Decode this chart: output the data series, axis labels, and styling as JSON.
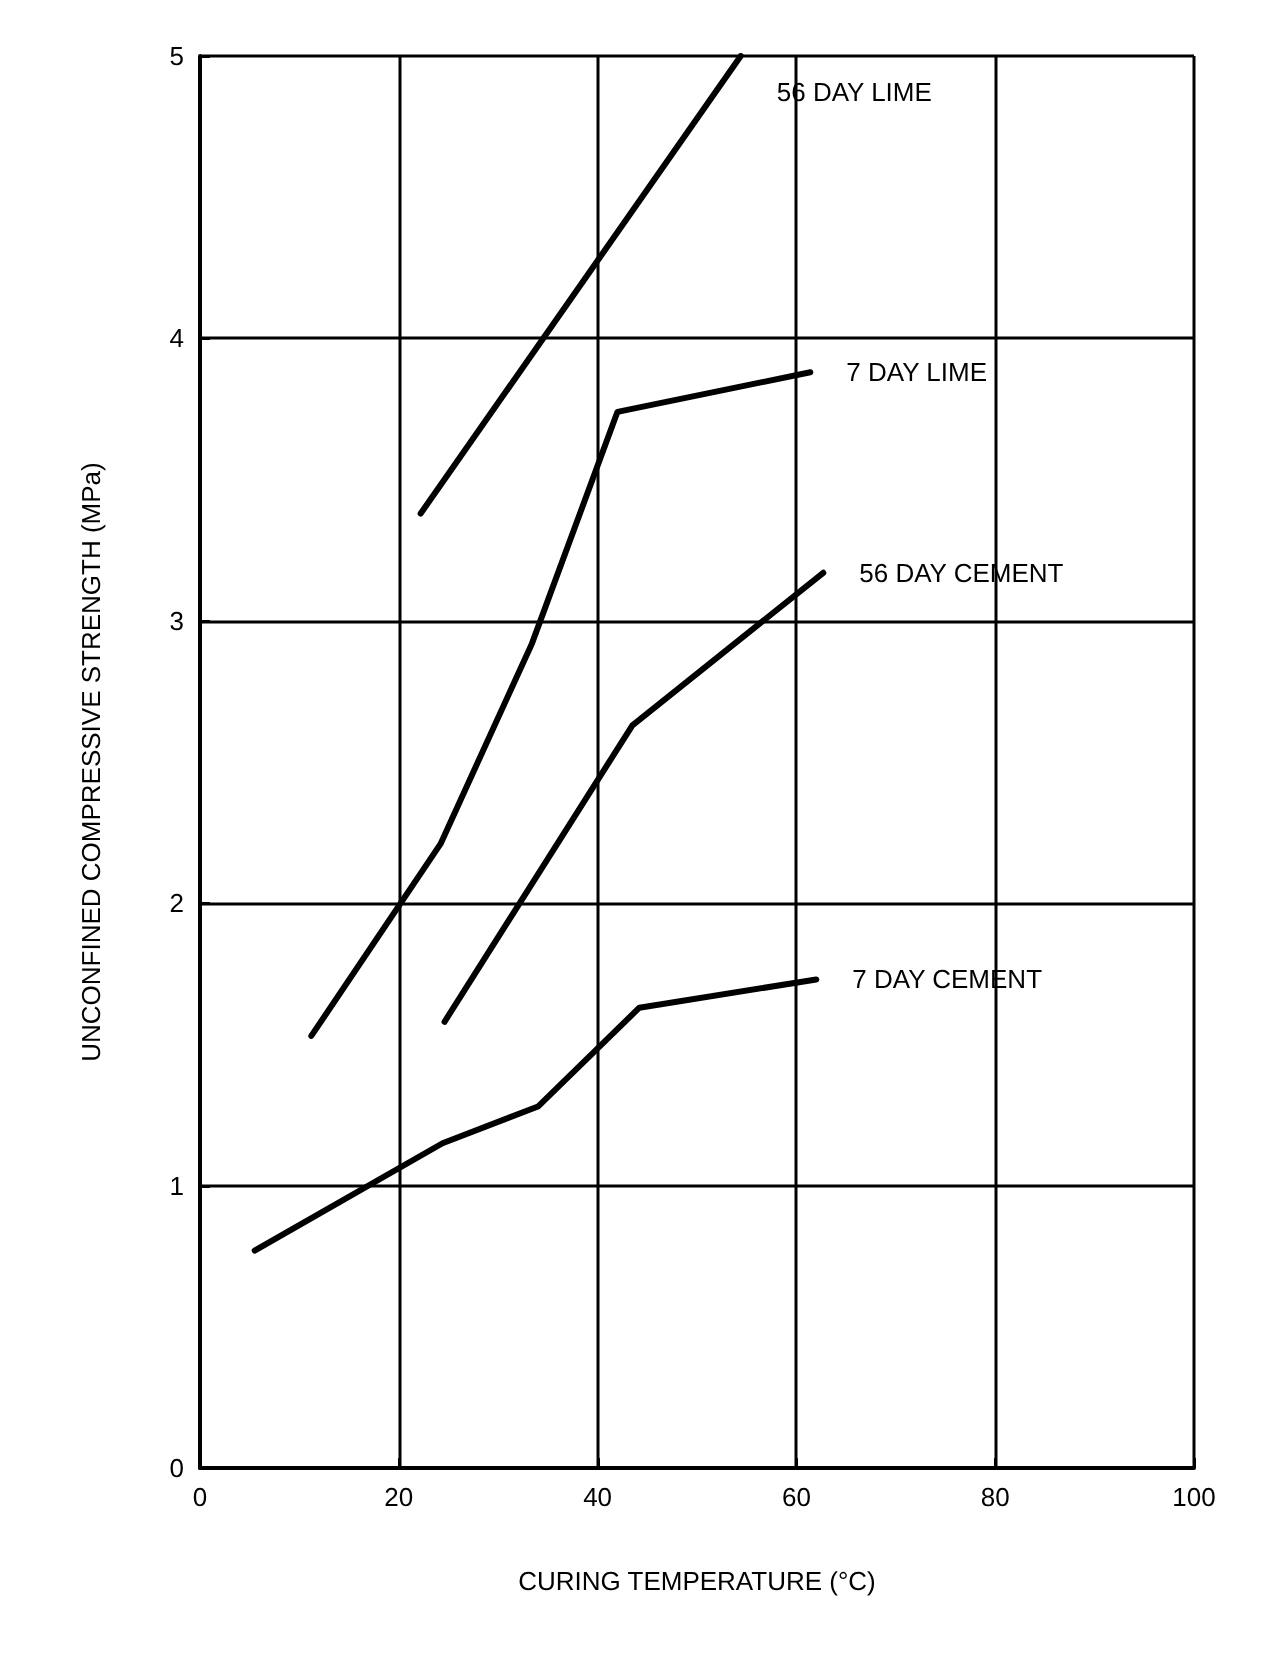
{
  "chart_data": {
    "type": "line",
    "xlabel": "CURING TEMPERATURE (°C)",
    "ylabel": "UNCONFINED COMPRESSIVE STRENGTH (MPa)",
    "xlim": [
      0,
      100
    ],
    "xticks": [
      0,
      20,
      40,
      60,
      80,
      100
    ],
    "ylim": [
      0,
      5
    ],
    "yticks": [
      0,
      1,
      2,
      3,
      4,
      5
    ],
    "grid": true,
    "legend": false,
    "marker": "none",
    "line_style": "solid",
    "series": [
      {
        "name": "56 DAY LIME",
        "color": "#000000",
        "x": [
          22.2,
          54.4
        ],
        "values": [
          3.38,
          5.0
        ]
      },
      {
        "name": "7 DAY LIME",
        "color": "#000000",
        "x": [
          11.2,
          24.2,
          33.4,
          42,
          61.4
        ],
        "values": [
          1.53,
          2.21,
          2.92,
          3.74,
          3.88
        ]
      },
      {
        "name": "56 DAY CEMENT",
        "color": "#000000",
        "x": [
          24.6,
          43.5,
          62.7
        ],
        "values": [
          1.58,
          2.63,
          3.17
        ]
      },
      {
        "name": "7 DAY CEMENT",
        "color": "#000000",
        "x": [
          5.5,
          24.4,
          34.0,
          44.2,
          62
        ],
        "values": [
          0.77,
          1.15,
          1.28,
          1.63,
          1.73
        ]
      }
    ]
  }
}
